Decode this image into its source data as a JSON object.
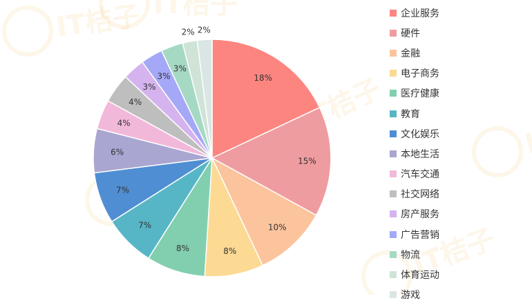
{
  "watermark_text": "IT桔子",
  "chart_data": {
    "type": "pie",
    "title": "",
    "legend_position": "right",
    "slices": [
      {
        "label": "企业服务",
        "value": 18,
        "display": "18%",
        "color": "#fd8580"
      },
      {
        "label": "硬件",
        "value": 15,
        "display": "15%",
        "color": "#ef9ca0"
      },
      {
        "label": "金融",
        "value": 10,
        "display": "10%",
        "color": "#fbc49d"
      },
      {
        "label": "电子商务",
        "value": 8,
        "display": "8%",
        "color": "#fcda94"
      },
      {
        "label": "医疗健康",
        "value": 8,
        "display": "8%",
        "color": "#82cfaf"
      },
      {
        "label": "教育",
        "value": 7,
        "display": "7%",
        "color": "#57b6c6"
      },
      {
        "label": "文化娱乐",
        "value": 7,
        "display": "7%",
        "color": "#4f8ed2"
      },
      {
        "label": "本地生活",
        "value": 6,
        "display": "6%",
        "color": "#a9a6d2"
      },
      {
        "label": "汽车交通",
        "value": 4,
        "display": "4%",
        "color": "#f2b8da"
      },
      {
        "label": "社交网络",
        "value": 4,
        "display": "4%",
        "color": "#bebebe"
      },
      {
        "label": "房产服务",
        "value": 3,
        "display": "3%",
        "color": "#d5b3ef"
      },
      {
        "label": "广告营销",
        "value": 3,
        "display": "3%",
        "color": "#a4a8f6"
      },
      {
        "label": "物流",
        "value": 3,
        "display": "3%",
        "color": "#a6d9c4"
      },
      {
        "label": "体育运动",
        "value": 2,
        "display": "2%",
        "color": "#cfe3d7"
      },
      {
        "label": "游戏",
        "value": 2,
        "display": "2%",
        "color": "#d9e6e3"
      }
    ]
  }
}
